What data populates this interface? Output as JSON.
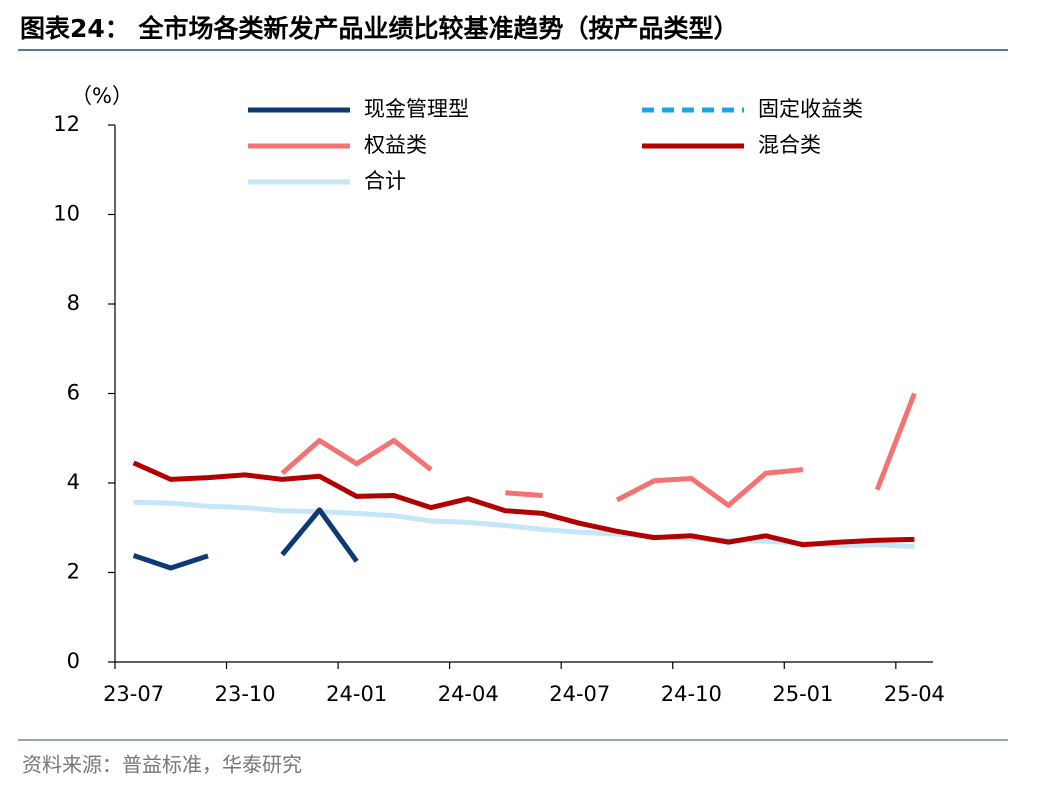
{
  "chart_data": {
    "type": "line",
    "title": "图表24：  全市场各类新发产品业绩比较基准趋势（按产品类型）",
    "y_unit": "（%）",
    "source": "资料来源：普益标准，华泰研究",
    "categories": [
      "23-07",
      null,
      null,
      "23-10",
      null,
      null,
      "24-01",
      null,
      null,
      "24-04",
      null,
      null,
      "24-07",
      null,
      null,
      "24-10",
      null,
      null,
      "25-01",
      null,
      null,
      "25-04"
    ],
    "ylim": [
      0,
      12
    ],
    "yticks": [
      0,
      2,
      4,
      6,
      8,
      10,
      12
    ],
    "series": [
      {
        "name": "合计",
        "color": "#c5e6f6",
        "values": [
          3.57,
          3.55,
          3.48,
          3.45,
          3.38,
          3.36,
          3.32,
          3.27,
          3.15,
          3.12,
          3.05,
          2.96,
          2.9,
          2.86,
          2.8,
          2.76,
          2.72,
          2.7,
          2.65,
          2.6,
          2.62,
          2.58
        ]
      },
      {
        "name": "固定收益类",
        "color": "#1aa3e8",
        "dashed": true,
        "values": [
          null,
          null,
          null,
          null,
          null,
          null,
          null,
          null,
          null,
          null,
          null,
          null,
          null,
          null,
          null,
          null,
          null,
          null,
          null,
          null,
          null,
          null
        ]
      },
      {
        "name": "混合类",
        "color": "#b30000",
        "values": [
          4.45,
          4.08,
          4.12,
          4.18,
          4.08,
          4.15,
          3.7,
          3.72,
          3.45,
          3.65,
          3.38,
          3.32,
          3.1,
          2.92,
          2.78,
          2.82,
          2.68,
          2.82,
          2.62,
          2.68,
          2.72,
          2.74
        ]
      },
      {
        "name": "权益类",
        "color": "#f47272",
        "values": [
          null,
          null,
          null,
          null,
          4.22,
          4.95,
          4.43,
          4.95,
          4.3,
          null,
          3.78,
          3.72,
          null,
          3.62,
          4.05,
          4.1,
          3.5,
          4.22,
          4.3,
          null,
          3.85,
          6.0
        ]
      },
      {
        "name": "现金管理型",
        "color": "#0d3a73",
        "values": [
          2.38,
          2.1,
          2.37,
          null,
          2.4,
          3.4,
          2.25,
          null,
          null,
          null,
          null,
          null,
          null,
          null,
          null,
          null,
          null,
          null,
          null,
          null,
          null,
          null
        ]
      }
    ]
  }
}
